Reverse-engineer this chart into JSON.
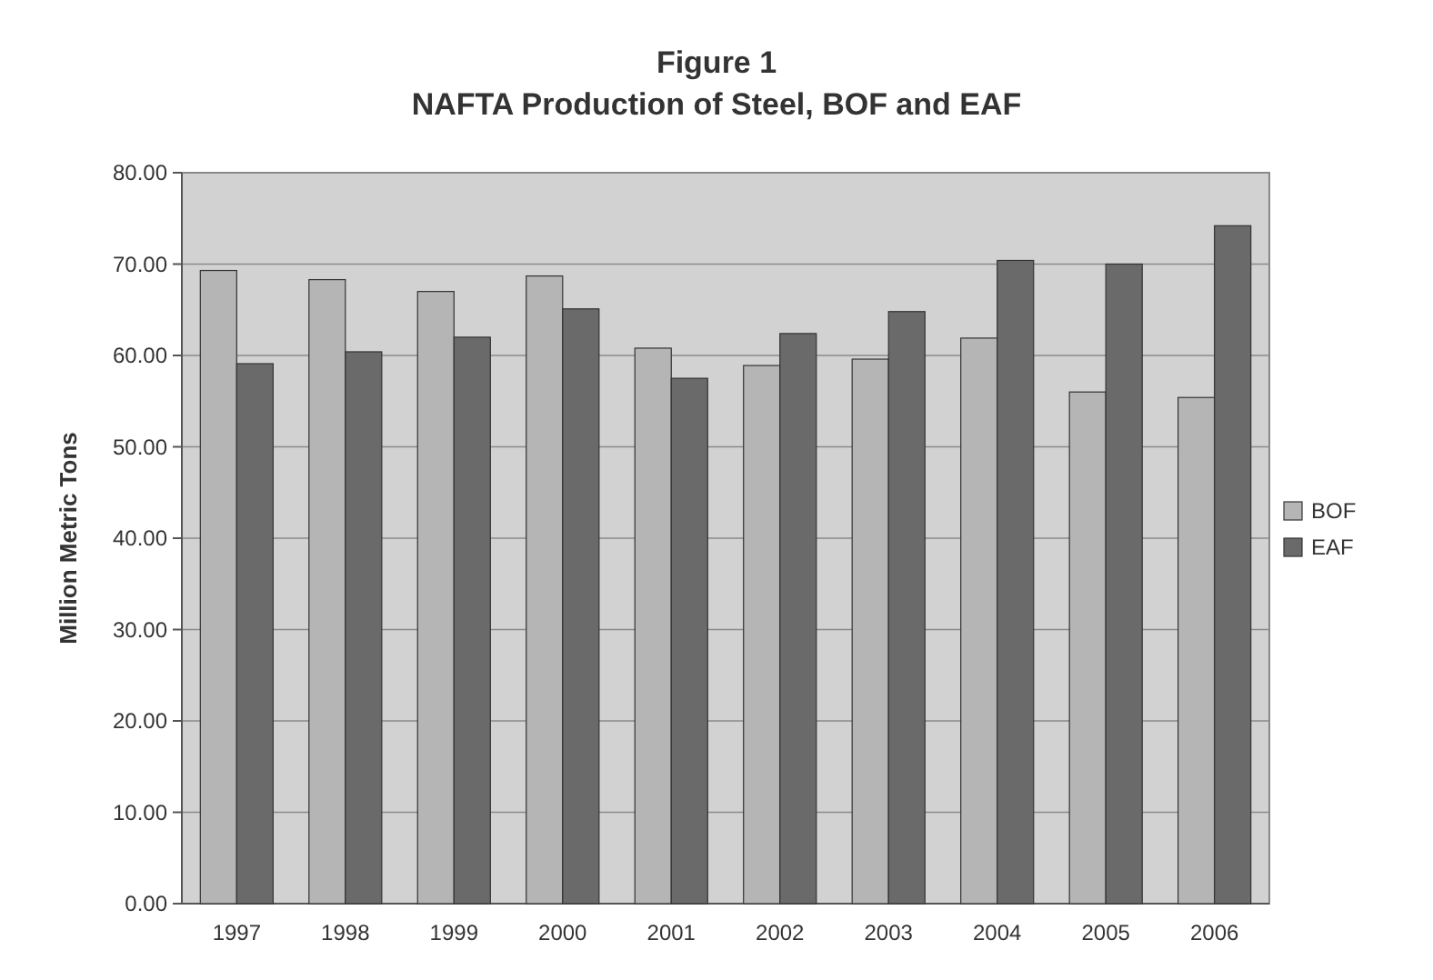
{
  "chart_data": {
    "type": "bar",
    "title": "Figure 1",
    "subtitle": "NAFTA Production of Steel, BOF and EAF",
    "ylabel": "Million Metric Tons",
    "categories": [
      "1997",
      "1998",
      "1999",
      "2000",
      "2001",
      "2002",
      "2003",
      "2004",
      "2005",
      "2006"
    ],
    "series": [
      {
        "name": "BOF",
        "color": "#b5b5b5",
        "values": [
          69.3,
          68.3,
          67.0,
          68.7,
          60.8,
          58.9,
          59.6,
          61.9,
          56.0,
          55.4
        ]
      },
      {
        "name": "EAF",
        "color": "#6a6a6a",
        "values": [
          59.1,
          60.4,
          62.0,
          65.1,
          57.5,
          62.4,
          64.8,
          70.4,
          70.0,
          74.2
        ]
      }
    ],
    "ylim": [
      0,
      80
    ],
    "yticks": [
      {
        "value": 0,
        "label": "0.00"
      },
      {
        "value": 10,
        "label": "10.00"
      },
      {
        "value": 20,
        "label": "20.00"
      },
      {
        "value": 30,
        "label": "30.00"
      },
      {
        "value": 40,
        "label": "40.00"
      },
      {
        "value": 50,
        "label": "50.00"
      },
      {
        "value": 60,
        "label": "60.00"
      },
      {
        "value": 70,
        "label": "70.00"
      },
      {
        "value": 80,
        "label": "80.00"
      }
    ],
    "grid": "y",
    "legend": "right"
  }
}
